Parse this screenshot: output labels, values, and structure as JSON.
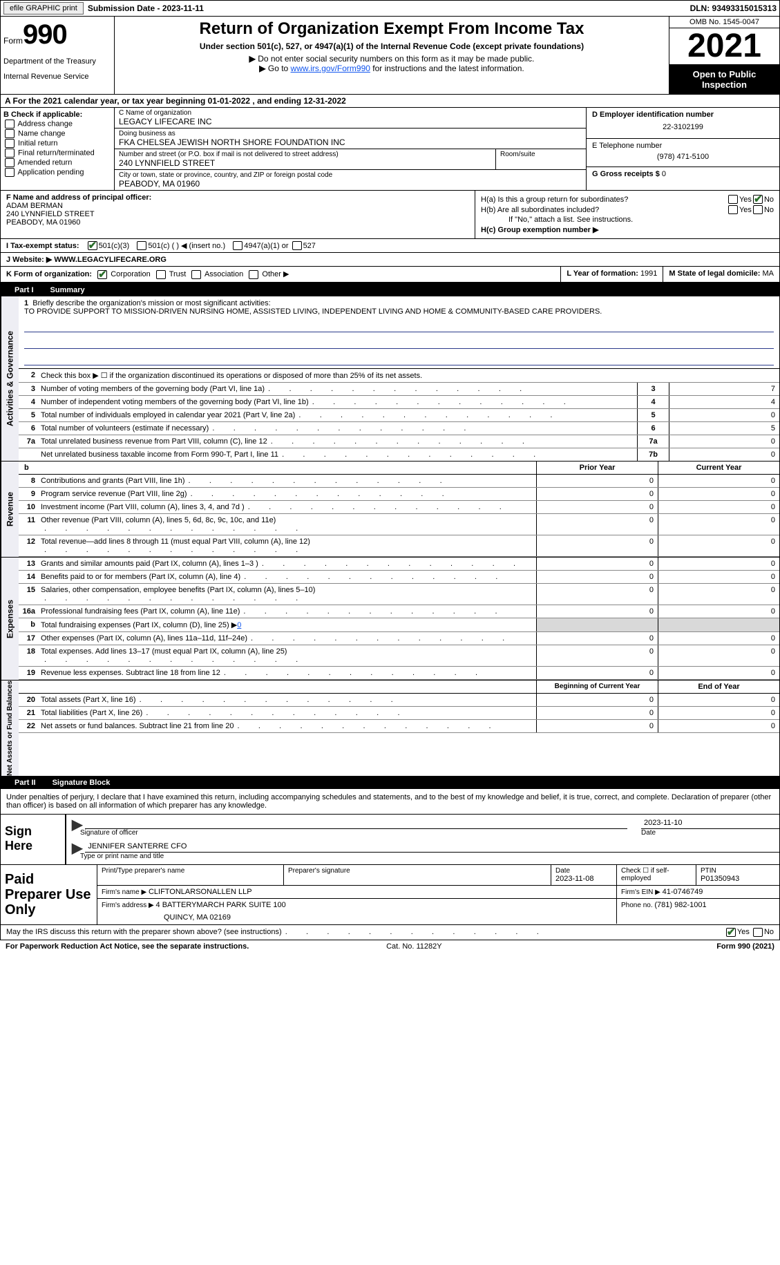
{
  "topbar": {
    "efile": "efile GRAPHIC print",
    "submission": "Submission Date - 2023-11-11",
    "dln": "DLN: 93493315015313"
  },
  "header": {
    "form_label": "Form",
    "form_num": "990",
    "dept": "Department of the Treasury",
    "irs": "Internal Revenue Service",
    "title": "Return of Organization Exempt From Income Tax",
    "sub1": "Under section 501(c), 527, or 4947(a)(1) of the Internal Revenue Code (except private foundations)",
    "sub2": "Do not enter social security numbers on this form as it may be made public.",
    "sub3_pre": "Go to ",
    "sub3_link": "www.irs.gov/Form990",
    "sub3_post": " for instructions and the latest information.",
    "omb": "OMB No. 1545-0047",
    "year": "2021",
    "open": "Open to Public Inspection"
  },
  "row_a": {
    "pre": "A For the 2021 calendar year, or tax year beginning ",
    "begin": "01-01-2022",
    "mid": " , and ending ",
    "end": "12-31-2022"
  },
  "b": {
    "label": "B Check if applicable:",
    "opts": [
      "Address change",
      "Name change",
      "Initial return",
      "Final return/terminated",
      "Amended return",
      "Application pending"
    ]
  },
  "c": {
    "name_lbl": "C Name of organization",
    "name": "LEGACY LIFECARE INC",
    "dba_lbl": "Doing business as",
    "dba": "FKA CHELSEA JEWISH NORTH SHORE FOUNDATION INC",
    "addr_lbl": "Number and street (or P.O. box if mail is not delivered to street address)",
    "room_lbl": "Room/suite",
    "addr": "240 LYNNFIELD STREET",
    "city_lbl": "City or town, state or province, country, and ZIP or foreign postal code",
    "city": "PEABODY, MA  01960"
  },
  "d": {
    "ein_lbl": "D Employer identification number",
    "ein": "22-3102199",
    "tel_lbl": "E Telephone number",
    "tel": "(978) 471-5100",
    "gross_lbl": "G Gross receipts $ ",
    "gross": "0"
  },
  "f": {
    "lbl": "F Name and address of principal officer:",
    "name": "ADAM BERMAN",
    "addr1": "240 LYNNFIELD STREET",
    "addr2": "PEABODY, MA  01960"
  },
  "h": {
    "a_lbl": "H(a)  Is this a group return for subordinates?",
    "b_lbl": "H(b)  Are all subordinates included?",
    "b_note": "If \"No,\" attach a list. See instructions.",
    "c_lbl": "H(c)  Group exemption number ▶",
    "yes": "Yes",
    "no": "No"
  },
  "i": {
    "lbl": "I  Tax-exempt status:",
    "o1": "501(c)(3)",
    "o2": "501(c) (   ) ◀ (insert no.)",
    "o3": "4947(a)(1) or",
    "o4": "527"
  },
  "j": {
    "lbl": "J  Website: ▶",
    "val": " WWW.LEGACYLIFECARE.ORG"
  },
  "k": {
    "lbl": "K Form of organization:",
    "o1": "Corporation",
    "o2": "Trust",
    "o3": "Association",
    "o4": "Other ▶",
    "l_lbl": "L Year of formation: ",
    "l_val": "1991",
    "m_lbl": "M State of legal domicile: ",
    "m_val": "MA"
  },
  "part1": {
    "tab": "Part I",
    "title": "Summary"
  },
  "vtabs": {
    "a": "Activities & Governance",
    "r": "Revenue",
    "e": "Expenses",
    "n": "Net Assets or Fund Balances"
  },
  "mission": {
    "lbl": "Briefly describe the organization's mission or most significant activities:",
    "text": "TO PROVIDE SUPPORT TO MISSION-DRIVEN NURSING HOME, ASSISTED LIVING, INDEPENDENT LIVING AND HOME & COMMUNITY-BASED CARE PROVIDERS."
  },
  "lines_ag": [
    {
      "n": "2",
      "d": "Check this box ▶ ☐ if the organization discontinued its operations or disposed of more than 25% of its net assets.",
      "nobox": true
    },
    {
      "n": "3",
      "d": "Number of voting members of the governing body (Part VI, line 1a)",
      "box": "3",
      "v": "7"
    },
    {
      "n": "4",
      "d": "Number of independent voting members of the governing body (Part VI, line 1b)",
      "box": "4",
      "v": "4"
    },
    {
      "n": "5",
      "d": "Total number of individuals employed in calendar year 2021 (Part V, line 2a)",
      "box": "5",
      "v": "0"
    },
    {
      "n": "6",
      "d": "Total number of volunteers (estimate if necessary)",
      "box": "6",
      "v": "5"
    },
    {
      "n": "7a",
      "d": "Total unrelated business revenue from Part VIII, column (C), line 12",
      "box": "7a",
      "v": "0"
    },
    {
      "n": "",
      "d": "Net unrelated business taxable income from Form 990-T, Part I, line 11",
      "box": "7b",
      "v": "0"
    }
  ],
  "col_hdr": {
    "b": "b",
    "prior": "Prior Year",
    "current": "Current Year"
  },
  "rev": [
    {
      "n": "8",
      "d": "Contributions and grants (Part VIII, line 1h)",
      "p": "0",
      "c": "0"
    },
    {
      "n": "9",
      "d": "Program service revenue (Part VIII, line 2g)",
      "p": "0",
      "c": "0"
    },
    {
      "n": "10",
      "d": "Investment income (Part VIII, column (A), lines 3, 4, and 7d )",
      "p": "0",
      "c": "0"
    },
    {
      "n": "11",
      "d": "Other revenue (Part VIII, column (A), lines 5, 6d, 8c, 9c, 10c, and 11e)",
      "p": "0",
      "c": "0"
    },
    {
      "n": "12",
      "d": "Total revenue—add lines 8 through 11 (must equal Part VIII, column (A), line 12)",
      "p": "0",
      "c": "0"
    }
  ],
  "exp": [
    {
      "n": "13",
      "d": "Grants and similar amounts paid (Part IX, column (A), lines 1–3 )",
      "p": "0",
      "c": "0"
    },
    {
      "n": "14",
      "d": "Benefits paid to or for members (Part IX, column (A), line 4)",
      "p": "0",
      "c": "0"
    },
    {
      "n": "15",
      "d": "Salaries, other compensation, employee benefits (Part IX, column (A), lines 5–10)",
      "p": "0",
      "c": "0"
    },
    {
      "n": "16a",
      "d": "Professional fundraising fees (Part IX, column (A), line 11e)",
      "p": "0",
      "c": "0"
    },
    {
      "n": "b",
      "d": "Total fundraising expenses (Part IX, column (D), line 25) ▶",
      "link": "0",
      "shade": true
    },
    {
      "n": "17",
      "d": "Other expenses (Part IX, column (A), lines 11a–11d, 11f–24e)",
      "p": "0",
      "c": "0"
    },
    {
      "n": "18",
      "d": "Total expenses. Add lines 13–17 (must equal Part IX, column (A), line 25)",
      "p": "0",
      "c": "0"
    },
    {
      "n": "19",
      "d": "Revenue less expenses. Subtract line 18 from line 12",
      "p": "0",
      "c": "0"
    }
  ],
  "na_hdr": {
    "b": "Beginning of Current Year",
    "e": "End of Year"
  },
  "na": [
    {
      "n": "20",
      "d": "Total assets (Part X, line 16)",
      "p": "0",
      "c": "0"
    },
    {
      "n": "21",
      "d": "Total liabilities (Part X, line 26)",
      "p": "0",
      "c": "0"
    },
    {
      "n": "22",
      "d": "Net assets or fund balances. Subtract line 21 from line 20",
      "p": "0",
      "c": "0"
    }
  ],
  "part2": {
    "tab": "Part II",
    "title": "Signature Block"
  },
  "sig": {
    "intro": "Under penalties of perjury, I declare that I have examined this return, including accompanying schedules and statements, and to the best of my knowledge and belief, it is true, correct, and complete. Declaration of preparer (other than officer) is based on all information of which preparer has any knowledge.",
    "here": "Sign Here",
    "sig_of": "Signature of officer",
    "date_lbl": "Date",
    "date": "2023-11-10",
    "name": "JENNIFER SANTERRE CFO",
    "name_lbl": "Type or print name and title"
  },
  "paid": {
    "lbl": "Paid Preparer Use Only",
    "h1": "Print/Type preparer's name",
    "h2": "Preparer's signature",
    "h3_lbl": "Date",
    "h3": "2023-11-08",
    "h4_lbl": "Check ☐ if self-employed",
    "h5_lbl": "PTIN",
    "h5": "P01350943",
    "firm_lbl": "Firm's name   ▶ ",
    "firm": "CLIFTONLARSONALLEN LLP",
    "ein_lbl": "Firm's EIN ▶ ",
    "ein": "41-0746749",
    "addr_lbl": "Firm's address ▶ ",
    "addr1": "4 BATTERYMARCH PARK SUITE 100",
    "addr2": "QUINCY, MA  02169",
    "phone_lbl": "Phone no. ",
    "phone": "(781) 982-1001"
  },
  "may": {
    "q": "May the IRS discuss this return with the preparer shown above? (see instructions)",
    "yes": "Yes",
    "no": "No"
  },
  "footer": {
    "l": "For Paperwork Reduction Act Notice, see the separate instructions.",
    "m": "Cat. No. 11282Y",
    "r": "Form 990 (2021)"
  }
}
